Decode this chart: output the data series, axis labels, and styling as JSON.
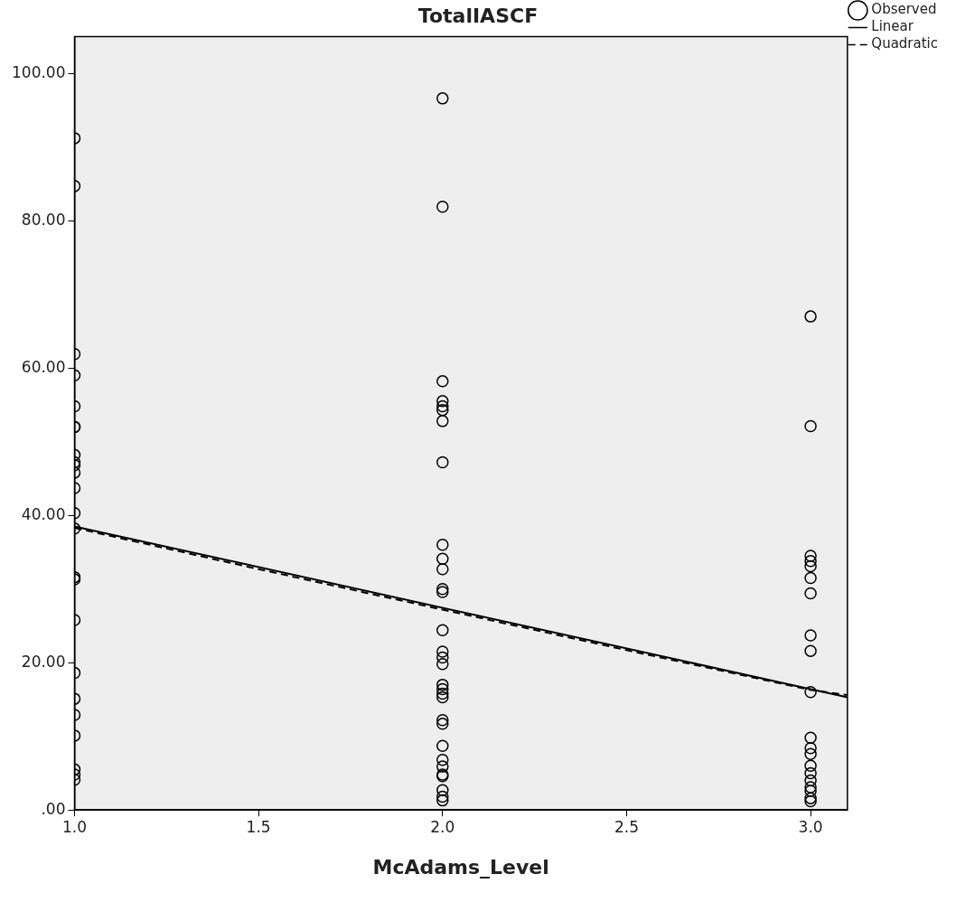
{
  "chart_data": {
    "type": "scatter",
    "title": "TotalIASCF",
    "xlabel": "McAdams_Level",
    "xlim": [
      1,
      3.1
    ],
    "xticks": [
      {
        "value": 1,
        "label": "1.0"
      },
      {
        "value": 1.5,
        "label": "1.5"
      },
      {
        "value": 2,
        "label": "2.0"
      },
      {
        "value": 2.5,
        "label": "2.5"
      },
      {
        "value": 3,
        "label": "3.0"
      }
    ],
    "ylim": [
      0,
      105
    ],
    "yticks": [
      {
        "value": 0,
        "label": ".00"
      },
      {
        "value": 20,
        "label": "20.00"
      },
      {
        "value": 40,
        "label": "40.00"
      },
      {
        "value": 60,
        "label": "60.00"
      },
      {
        "value": 80,
        "label": "80.00"
      },
      {
        "value": 100,
        "label": "100.00"
      }
    ],
    "grid": false,
    "legend": "top right",
    "series": [
      {
        "name": "Observed",
        "type": "scatter",
        "marker": "circle",
        "color": "#000000",
        "x": [
          1,
          1,
          1,
          1,
          1,
          1,
          1,
          1,
          1,
          1,
          1,
          1,
          1,
          1,
          1,
          1,
          1,
          1,
          1,
          1,
          1,
          1,
          1,
          1,
          2,
          2,
          2,
          2,
          2,
          2,
          2,
          2,
          2,
          2,
          2,
          2,
          2,
          2,
          2,
          2,
          2,
          2,
          2,
          2,
          2,
          2,
          2,
          2,
          2,
          2,
          2,
          2,
          2,
          2,
          2,
          3,
          3,
          3,
          3,
          3,
          3,
          3,
          3,
          3,
          3,
          3,
          3,
          3,
          3,
          3,
          3,
          3,
          3,
          3,
          3
        ],
        "values": [
          91.2,
          84.7,
          61.9,
          59.0,
          54.8,
          52.0,
          52.0,
          48.2,
          47.2,
          46.8,
          45.8,
          43.7,
          40.3,
          38.2,
          31.6,
          31.3,
          25.8,
          18.6,
          15.1,
          12.9,
          10.1,
          5.5,
          4.8,
          4.1,
          96.6,
          81.9,
          58.2,
          55.5,
          54.8,
          54.3,
          52.8,
          47.2,
          36.0,
          34.1,
          32.7,
          30.0,
          29.6,
          24.4,
          21.5,
          20.7,
          19.8,
          17.0,
          16.4,
          15.8,
          15.3,
          12.2,
          11.7,
          8.7,
          6.8,
          5.9,
          4.8,
          4.6,
          2.7,
          1.8,
          1.3,
          67.0,
          52.1,
          34.5,
          33.8,
          33.1,
          31.5,
          29.4,
          23.7,
          21.6,
          16.0,
          9.8,
          8.4,
          7.6,
          6.0,
          5.0,
          4.0,
          3.1,
          2.6,
          1.6,
          1.2
        ]
      },
      {
        "name": "Linear",
        "type": "line",
        "marker": "none",
        "line_style": "solid",
        "color": "#000000",
        "x": [
          1,
          3.1
        ],
        "values": [
          38.5,
          15.3
        ]
      },
      {
        "name": "Quadratic",
        "type": "line",
        "marker": "none",
        "line_style": "dashed",
        "color": "#000000",
        "x": [
          1,
          1.5,
          2,
          2.5,
          3,
          3.1
        ],
        "values": [
          38.3,
          32.7,
          27.2,
          21.7,
          16.3,
          15.6
        ]
      }
    ]
  }
}
